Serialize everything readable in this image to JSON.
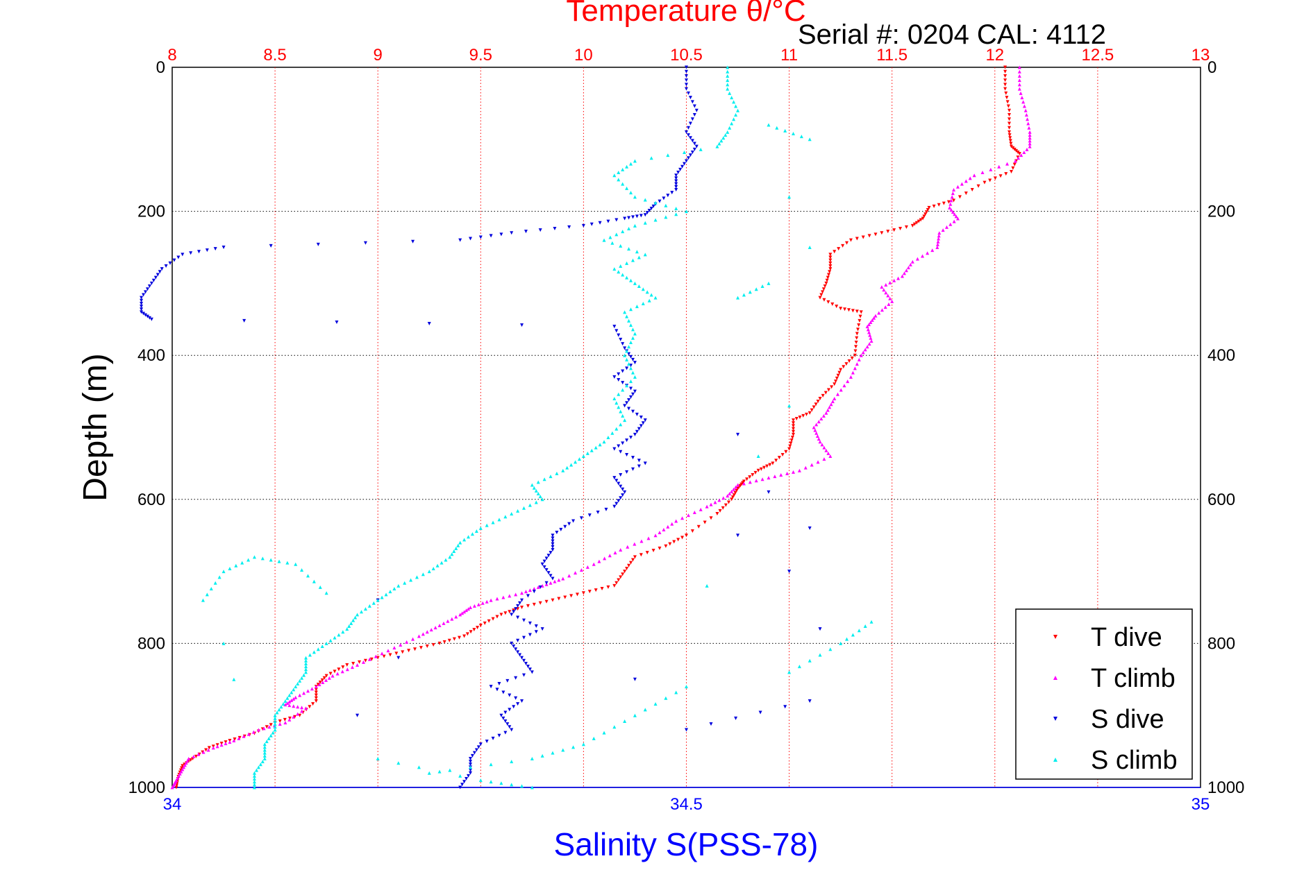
{
  "chart_data": {
    "type": "scatter",
    "title": "Temperature θ/°C",
    "annotation": "Serial #: 0204  CAL: 4112",
    "ylabel": "Depth (m)",
    "xlabel": "Salinity S(PSS-78)",
    "ylim": [
      0,
      1000
    ],
    "y_reversed": true,
    "y_ticks": [
      "0",
      "200",
      "400",
      "600",
      "800",
      "1000"
    ],
    "x_top": {
      "quantity": "Temperature",
      "range": [
        8,
        13
      ],
      "ticks": [
        "8",
        "8.5",
        "9",
        "9.5",
        "10",
        "10.5",
        "11",
        "11.5",
        "12",
        "12.5",
        "13"
      ]
    },
    "x_bottom": {
      "quantity": "Salinity",
      "range": [
        34,
        35
      ],
      "ticks": [
        "34",
        "34.5",
        "35"
      ]
    },
    "grid": true,
    "legend_position": "bottom-right",
    "series": [
      {
        "name": "T dive",
        "axis": "temperature",
        "color": "#ff0000",
        "marker": "triangle-down",
        "points": [
          [
            12.05,
            0
          ],
          [
            12.05,
            30
          ],
          [
            12.07,
            60
          ],
          [
            12.07,
            90
          ],
          [
            12.08,
            110
          ],
          [
            12.12,
            120
          ],
          [
            12.08,
            145
          ],
          [
            11.95,
            160
          ],
          [
            11.8,
            185
          ],
          [
            11.68,
            195
          ],
          [
            11.65,
            210
          ],
          [
            11.6,
            220
          ],
          [
            11.45,
            230
          ],
          [
            11.3,
            240
          ],
          [
            11.2,
            260
          ],
          [
            11.2,
            280
          ],
          [
            11.18,
            300
          ],
          [
            11.15,
            320
          ],
          [
            11.25,
            335
          ],
          [
            11.35,
            340
          ],
          [
            11.33,
            370
          ],
          [
            11.32,
            400
          ],
          [
            11.25,
            420
          ],
          [
            11.22,
            440
          ],
          [
            11.15,
            460
          ],
          [
            11.1,
            480
          ],
          [
            11.02,
            490
          ],
          [
            11.02,
            510
          ],
          [
            11.0,
            530
          ],
          [
            10.92,
            550
          ],
          [
            10.85,
            560
          ],
          [
            10.78,
            575
          ],
          [
            10.75,
            585
          ],
          [
            10.72,
            600
          ],
          [
            10.65,
            620
          ],
          [
            10.5,
            650
          ],
          [
            10.4,
            665
          ],
          [
            10.25,
            680
          ],
          [
            10.2,
            700
          ],
          [
            10.15,
            720
          ],
          [
            10.0,
            730
          ],
          [
            9.85,
            740
          ],
          [
            9.7,
            750
          ],
          [
            9.6,
            760
          ],
          [
            9.5,
            775
          ],
          [
            9.42,
            790
          ],
          [
            9.3,
            800
          ],
          [
            9.15,
            810
          ],
          [
            9.0,
            820
          ],
          [
            8.85,
            830
          ],
          [
            8.75,
            845
          ],
          [
            8.7,
            860
          ],
          [
            8.7,
            880
          ],
          [
            8.62,
            900
          ],
          [
            8.5,
            910
          ],
          [
            8.4,
            925
          ],
          [
            8.28,
            935
          ],
          [
            8.18,
            945
          ],
          [
            8.1,
            960
          ],
          [
            8.05,
            970
          ],
          [
            8.03,
            985
          ],
          [
            8.02,
            1000
          ]
        ]
      },
      {
        "name": "T climb",
        "axis": "temperature",
        "color": "#ff00ff",
        "marker": "triangle-up",
        "points": [
          [
            12.12,
            0
          ],
          [
            12.12,
            30
          ],
          [
            12.15,
            60
          ],
          [
            12.17,
            90
          ],
          [
            12.17,
            110
          ],
          [
            12.1,
            130
          ],
          [
            11.9,
            150
          ],
          [
            11.8,
            170
          ],
          [
            11.78,
            195
          ],
          [
            11.82,
            210
          ],
          [
            11.73,
            230
          ],
          [
            11.72,
            250
          ],
          [
            11.6,
            270
          ],
          [
            11.55,
            290
          ],
          [
            11.45,
            305
          ],
          [
            11.5,
            325
          ],
          [
            11.42,
            345
          ],
          [
            11.38,
            360
          ],
          [
            11.4,
            380
          ],
          [
            11.35,
            400
          ],
          [
            11.3,
            430
          ],
          [
            11.22,
            460
          ],
          [
            11.18,
            480
          ],
          [
            11.12,
            500
          ],
          [
            11.15,
            520
          ],
          [
            11.2,
            540
          ],
          [
            11.05,
            560
          ],
          [
            10.9,
            570
          ],
          [
            10.75,
            580
          ],
          [
            10.7,
            595
          ],
          [
            10.6,
            610
          ],
          [
            10.45,
            630
          ],
          [
            10.35,
            650
          ],
          [
            10.18,
            670
          ],
          [
            10.05,
            690
          ],
          [
            9.9,
            710
          ],
          [
            9.8,
            720
          ],
          [
            9.7,
            730
          ],
          [
            9.55,
            740
          ],
          [
            9.45,
            750
          ],
          [
            9.4,
            760
          ],
          [
            9.3,
            775
          ],
          [
            9.2,
            790
          ],
          [
            9.05,
            810
          ],
          [
            8.9,
            830
          ],
          [
            8.78,
            845
          ],
          [
            8.7,
            860
          ],
          [
            8.6,
            875
          ],
          [
            8.55,
            885
          ],
          [
            8.65,
            890
          ],
          [
            8.55,
            910
          ],
          [
            8.42,
            920
          ],
          [
            8.3,
            935
          ],
          [
            8.2,
            945
          ],
          [
            8.08,
            960
          ],
          [
            8.05,
            975
          ],
          [
            8.02,
            990
          ],
          [
            8.0,
            1000
          ]
        ]
      },
      {
        "name": "S dive",
        "axis": "salinity",
        "color": "#0000dd",
        "marker": "triangle-down",
        "points": [
          [
            34.5,
            0
          ],
          [
            34.5,
            30
          ],
          [
            34.51,
            60
          ],
          [
            34.5,
            90
          ],
          [
            34.51,
            110
          ],
          [
            34.5,
            130
          ],
          [
            34.49,
            150
          ],
          [
            34.49,
            170
          ],
          [
            34.47,
            190
          ],
          [
            34.46,
            205
          ],
          [
            34.44,
            210
          ],
          [
            34.4,
            220
          ],
          [
            34.33,
            230
          ],
          [
            34.28,
            240
          ],
          [
            34.05,
            250
          ],
          [
            34.01,
            260
          ],
          [
            33.99,
            280
          ],
          [
            33.98,
            300
          ],
          [
            33.97,
            320
          ],
          [
            33.97,
            340
          ],
          [
            33.98,
            350
          ],
          [
            34.43,
            360
          ],
          [
            34.44,
            390
          ],
          [
            34.45,
            410
          ],
          [
            34.43,
            430
          ],
          [
            34.45,
            450
          ],
          [
            34.44,
            470
          ],
          [
            34.46,
            490
          ],
          [
            34.45,
            510
          ],
          [
            34.43,
            530
          ],
          [
            34.46,
            550
          ],
          [
            34.43,
            570
          ],
          [
            34.44,
            590
          ],
          [
            34.43,
            610
          ],
          [
            34.39,
            630
          ],
          [
            34.37,
            650
          ],
          [
            34.37,
            670
          ],
          [
            34.36,
            690
          ],
          [
            34.37,
            710
          ],
          [
            34.34,
            740
          ],
          [
            34.33,
            760
          ],
          [
            34.36,
            780
          ],
          [
            34.33,
            800
          ],
          [
            34.34,
            820
          ],
          [
            34.35,
            840
          ],
          [
            34.31,
            860
          ],
          [
            34.34,
            880
          ],
          [
            34.32,
            900
          ],
          [
            34.33,
            920
          ],
          [
            34.3,
            940
          ],
          [
            34.29,
            960
          ],
          [
            34.29,
            980
          ],
          [
            34.28,
            1000
          ],
          [
            34.55,
            510
          ],
          [
            34.58,
            590
          ],
          [
            34.62,
            640
          ],
          [
            34.6,
            700
          ],
          [
            34.63,
            780
          ],
          [
            34.62,
            880
          ],
          [
            34.5,
            920
          ],
          [
            34.2,
            740
          ],
          [
            34.22,
            820
          ],
          [
            34.18,
            900
          ],
          [
            34.55,
            650
          ],
          [
            34.45,
            850
          ]
        ]
      },
      {
        "name": "S climb",
        "axis": "salinity",
        "color": "#00eeee",
        "marker": "triangle-up",
        "points": [
          [
            34.54,
            0
          ],
          [
            34.54,
            30
          ],
          [
            34.55,
            60
          ],
          [
            34.54,
            90
          ],
          [
            34.53,
            110
          ],
          [
            34.45,
            130
          ],
          [
            34.43,
            150
          ],
          [
            34.45,
            180
          ],
          [
            34.5,
            200
          ],
          [
            34.45,
            220
          ],
          [
            34.42,
            240
          ],
          [
            34.46,
            260
          ],
          [
            34.43,
            280
          ],
          [
            34.45,
            300
          ],
          [
            34.47,
            320
          ],
          [
            34.44,
            340
          ],
          [
            34.45,
            370
          ],
          [
            34.44,
            400
          ],
          [
            34.45,
            430
          ],
          [
            34.43,
            460
          ],
          [
            34.44,
            490
          ],
          [
            34.42,
            520
          ],
          [
            34.4,
            540
          ],
          [
            34.38,
            560
          ],
          [
            34.35,
            580
          ],
          [
            34.36,
            600
          ],
          [
            34.33,
            620
          ],
          [
            34.3,
            640
          ],
          [
            34.28,
            660
          ],
          [
            34.27,
            680
          ],
          [
            34.25,
            700
          ],
          [
            34.22,
            720
          ],
          [
            34.2,
            740
          ],
          [
            34.18,
            760
          ],
          [
            34.17,
            780
          ],
          [
            34.15,
            800
          ],
          [
            34.13,
            820
          ],
          [
            34.13,
            840
          ],
          [
            34.12,
            860
          ],
          [
            34.11,
            880
          ],
          [
            34.1,
            900
          ],
          [
            34.1,
            920
          ],
          [
            34.09,
            940
          ],
          [
            34.09,
            960
          ],
          [
            34.08,
            980
          ],
          [
            34.08,
            1000
          ],
          [
            34.62,
            250
          ],
          [
            34.58,
            300
          ],
          [
            34.55,
            320
          ],
          [
            34.6,
            470
          ],
          [
            34.57,
            540
          ],
          [
            34.68,
            770
          ],
          [
            34.65,
            800
          ],
          [
            34.6,
            840
          ],
          [
            34.52,
            720
          ],
          [
            34.5,
            860
          ],
          [
            34.45,
            900
          ],
          [
            34.4,
            940
          ],
          [
            34.35,
            960
          ],
          [
            34.25,
            980
          ],
          [
            34.15,
            730
          ],
          [
            34.12,
            690
          ],
          [
            34.08,
            680
          ],
          [
            34.05,
            700
          ],
          [
            34.03,
            740
          ],
          [
            34.05,
            800
          ],
          [
            34.06,
            850
          ],
          [
            34.2,
            960
          ],
          [
            34.3,
            990
          ],
          [
            34.35,
            1000
          ],
          [
            34.6,
            180
          ],
          [
            34.58,
            80
          ],
          [
            34.62,
            100
          ]
        ]
      }
    ]
  }
}
